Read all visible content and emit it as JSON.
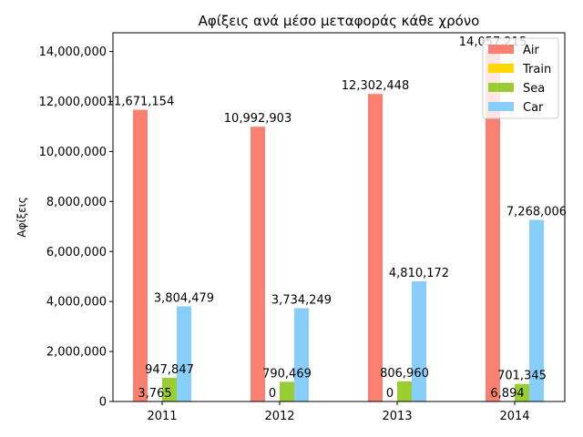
{
  "chart_data": {
    "type": "bar",
    "title": "Αφίξεις ανά μέσο μεταφοράς κάθε χρόνο",
    "ylabel": "Αφίξεις",
    "xlabel": "",
    "categories": [
      "2011",
      "2012",
      "2013",
      "2014"
    ],
    "ylim": [
      0,
      14750000
    ],
    "yticks": [
      0,
      2000000,
      4000000,
      6000000,
      8000000,
      10000000,
      12000000,
      14000000
    ],
    "ytick_labels": [
      "0",
      "2,000,000",
      "4,000,000",
      "6,000,000",
      "8,000,000",
      "10,000,000",
      "12,000,000",
      "14,000,000"
    ],
    "legend_position": "top-right",
    "grid": false,
    "series": [
      {
        "name": "Air",
        "color": "#fa8072",
        "values": [
          11671154,
          10992903,
          12302448,
          14057215
        ],
        "labels": [
          "11,671,154",
          "10,992,903",
          "12,302,448",
          "14,057,215"
        ]
      },
      {
        "name": "Train",
        "color": "#ffd700",
        "values": [
          3765,
          0,
          0,
          6894
        ],
        "labels": [
          "3,765",
          "0",
          "0",
          "6,894"
        ]
      },
      {
        "name": "Sea",
        "color": "#9acd32",
        "values": [
          947847,
          790469,
          806960,
          701345
        ],
        "labels": [
          "947,847",
          "790,469",
          "806,960",
          "701,345"
        ]
      },
      {
        "name": "Car",
        "color": "#87cefa",
        "values": [
          3804479,
          3734249,
          4810172,
          7268006
        ],
        "labels": [
          "3,804,479",
          "3,734,249",
          "4,810,172",
          "7,268,006"
        ]
      }
    ]
  }
}
